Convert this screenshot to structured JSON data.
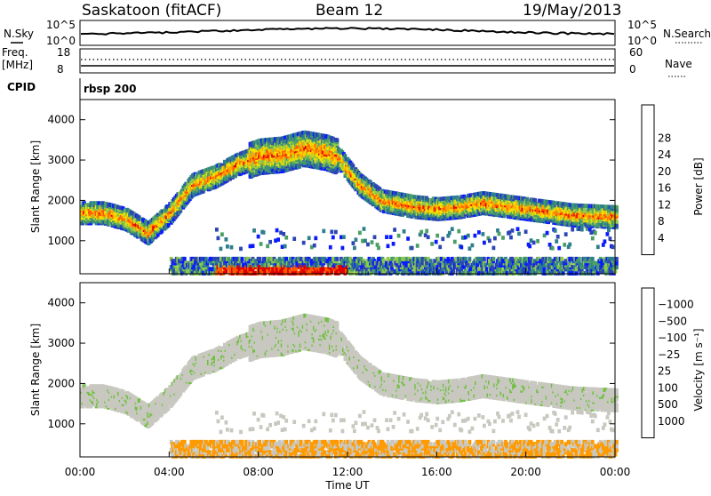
{
  "header": {
    "station": "Saskatoon (fitACF)",
    "beam": "Beam 12",
    "date": "19/May/2013"
  },
  "sky_panel": {
    "left_label": "N.Sky",
    "right_label": "N.Search",
    "ticks_left": [
      "10^5",
      "10^0"
    ],
    "ticks_right": [
      "10^5",
      "10^0"
    ]
  },
  "freq_panel": {
    "left_label_1": "Freq.",
    "left_label_2": "[MHz]",
    "right_label": "Nave",
    "ticks_left": [
      "18",
      "8"
    ],
    "ticks_right": [
      "60",
      "0"
    ]
  },
  "cpid_panel": {
    "label": "CPID",
    "program": "rbsp 200"
  },
  "chart_data": [
    {
      "type": "heatmap",
      "name": "power",
      "xlabel": "Time UT",
      "ylabel": "Slant Range [km]",
      "xlim": [
        0,
        24
      ],
      "ylim": [
        180,
        4500
      ],
      "yticks": [
        "1000",
        "2000",
        "3000",
        "4000"
      ],
      "colorbar": {
        "label": "Power [dB]",
        "colors": [
          "#0a1aff",
          "#2c45b4",
          "#2e7f8c",
          "#4aa064",
          "#8fc84a",
          "#f2e200",
          "#ffa500",
          "#ff5a00",
          "#e00000"
        ],
        "tick_labels": [
          "4",
          "8",
          "12",
          "16",
          "20",
          "24",
          "28"
        ]
      },
      "echo_bands": [
        {
          "range_start_km": [
            1700,
            1700,
            1550,
            1200,
            1700,
            2400,
            2600,
            2900,
            3100,
            3150,
            3300,
            3200,
            3100,
            2400,
            2000,
            1850,
            1800,
            1850,
            1950,
            1800,
            1650,
            1600
          ],
          "hours": [
            0,
            1,
            2,
            3,
            4,
            5,
            6,
            7,
            8,
            9,
            10,
            11,
            11.5,
            12.5,
            13.5,
            15,
            16,
            17,
            18,
            20,
            22,
            24
          ],
          "power_db": 12
        }
      ]
    },
    {
      "type": "heatmap",
      "name": "velocity",
      "xlabel": "Time UT",
      "ylabel": "Slant Range [km]",
      "xlim": [
        0,
        24
      ],
      "ylim": [
        180,
        4500
      ],
      "xticks": [
        "00:00",
        "04:00",
        "08:00",
        "12:00",
        "16:00",
        "20:00",
        "00:00"
      ],
      "yticks": [
        "1000",
        "2000",
        "3000",
        "4000"
      ],
      "colorbar": {
        "label": "Velocity [m s⁻¹]",
        "colors": [
          "#2040c0",
          "#2e6fa8",
          "#3a9a6a",
          "#70c040",
          "#c8c8c0",
          "#c8c8c0",
          "#ff9a00",
          "#ff5a00",
          "#e00000"
        ],
        "tick_labels": [
          "1000",
          "500",
          "100",
          "25",
          "−25",
          "−100",
          "−500",
          "−1000"
        ]
      }
    }
  ]
}
